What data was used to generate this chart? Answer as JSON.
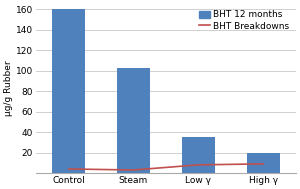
{
  "categories": [
    "Control",
    "Steam",
    "Low γ",
    "High γ"
  ],
  "bar_values": [
    160,
    103,
    35,
    20
  ],
  "line_values": [
    4,
    3,
    8,
    9
  ],
  "bar_color": "#4F81BD",
  "line_color": "#C0504D",
  "ylabel": "μg/g Rubber",
  "ylim": [
    0,
    165
  ],
  "yticks": [
    0,
    20,
    40,
    60,
    80,
    100,
    120,
    140,
    160
  ],
  "legend_bar_label": "BHT 12 months",
  "legend_line_label": "BHT Breakdowns",
  "bar_width": 0.5,
  "axis_fontsize": 6.5,
  "tick_fontsize": 6.5,
  "legend_fontsize": 6.5,
  "plot_bg_color": "#ffffff",
  "fig_bg_color": "#ffffff",
  "grid_color": "#d0d0d0"
}
